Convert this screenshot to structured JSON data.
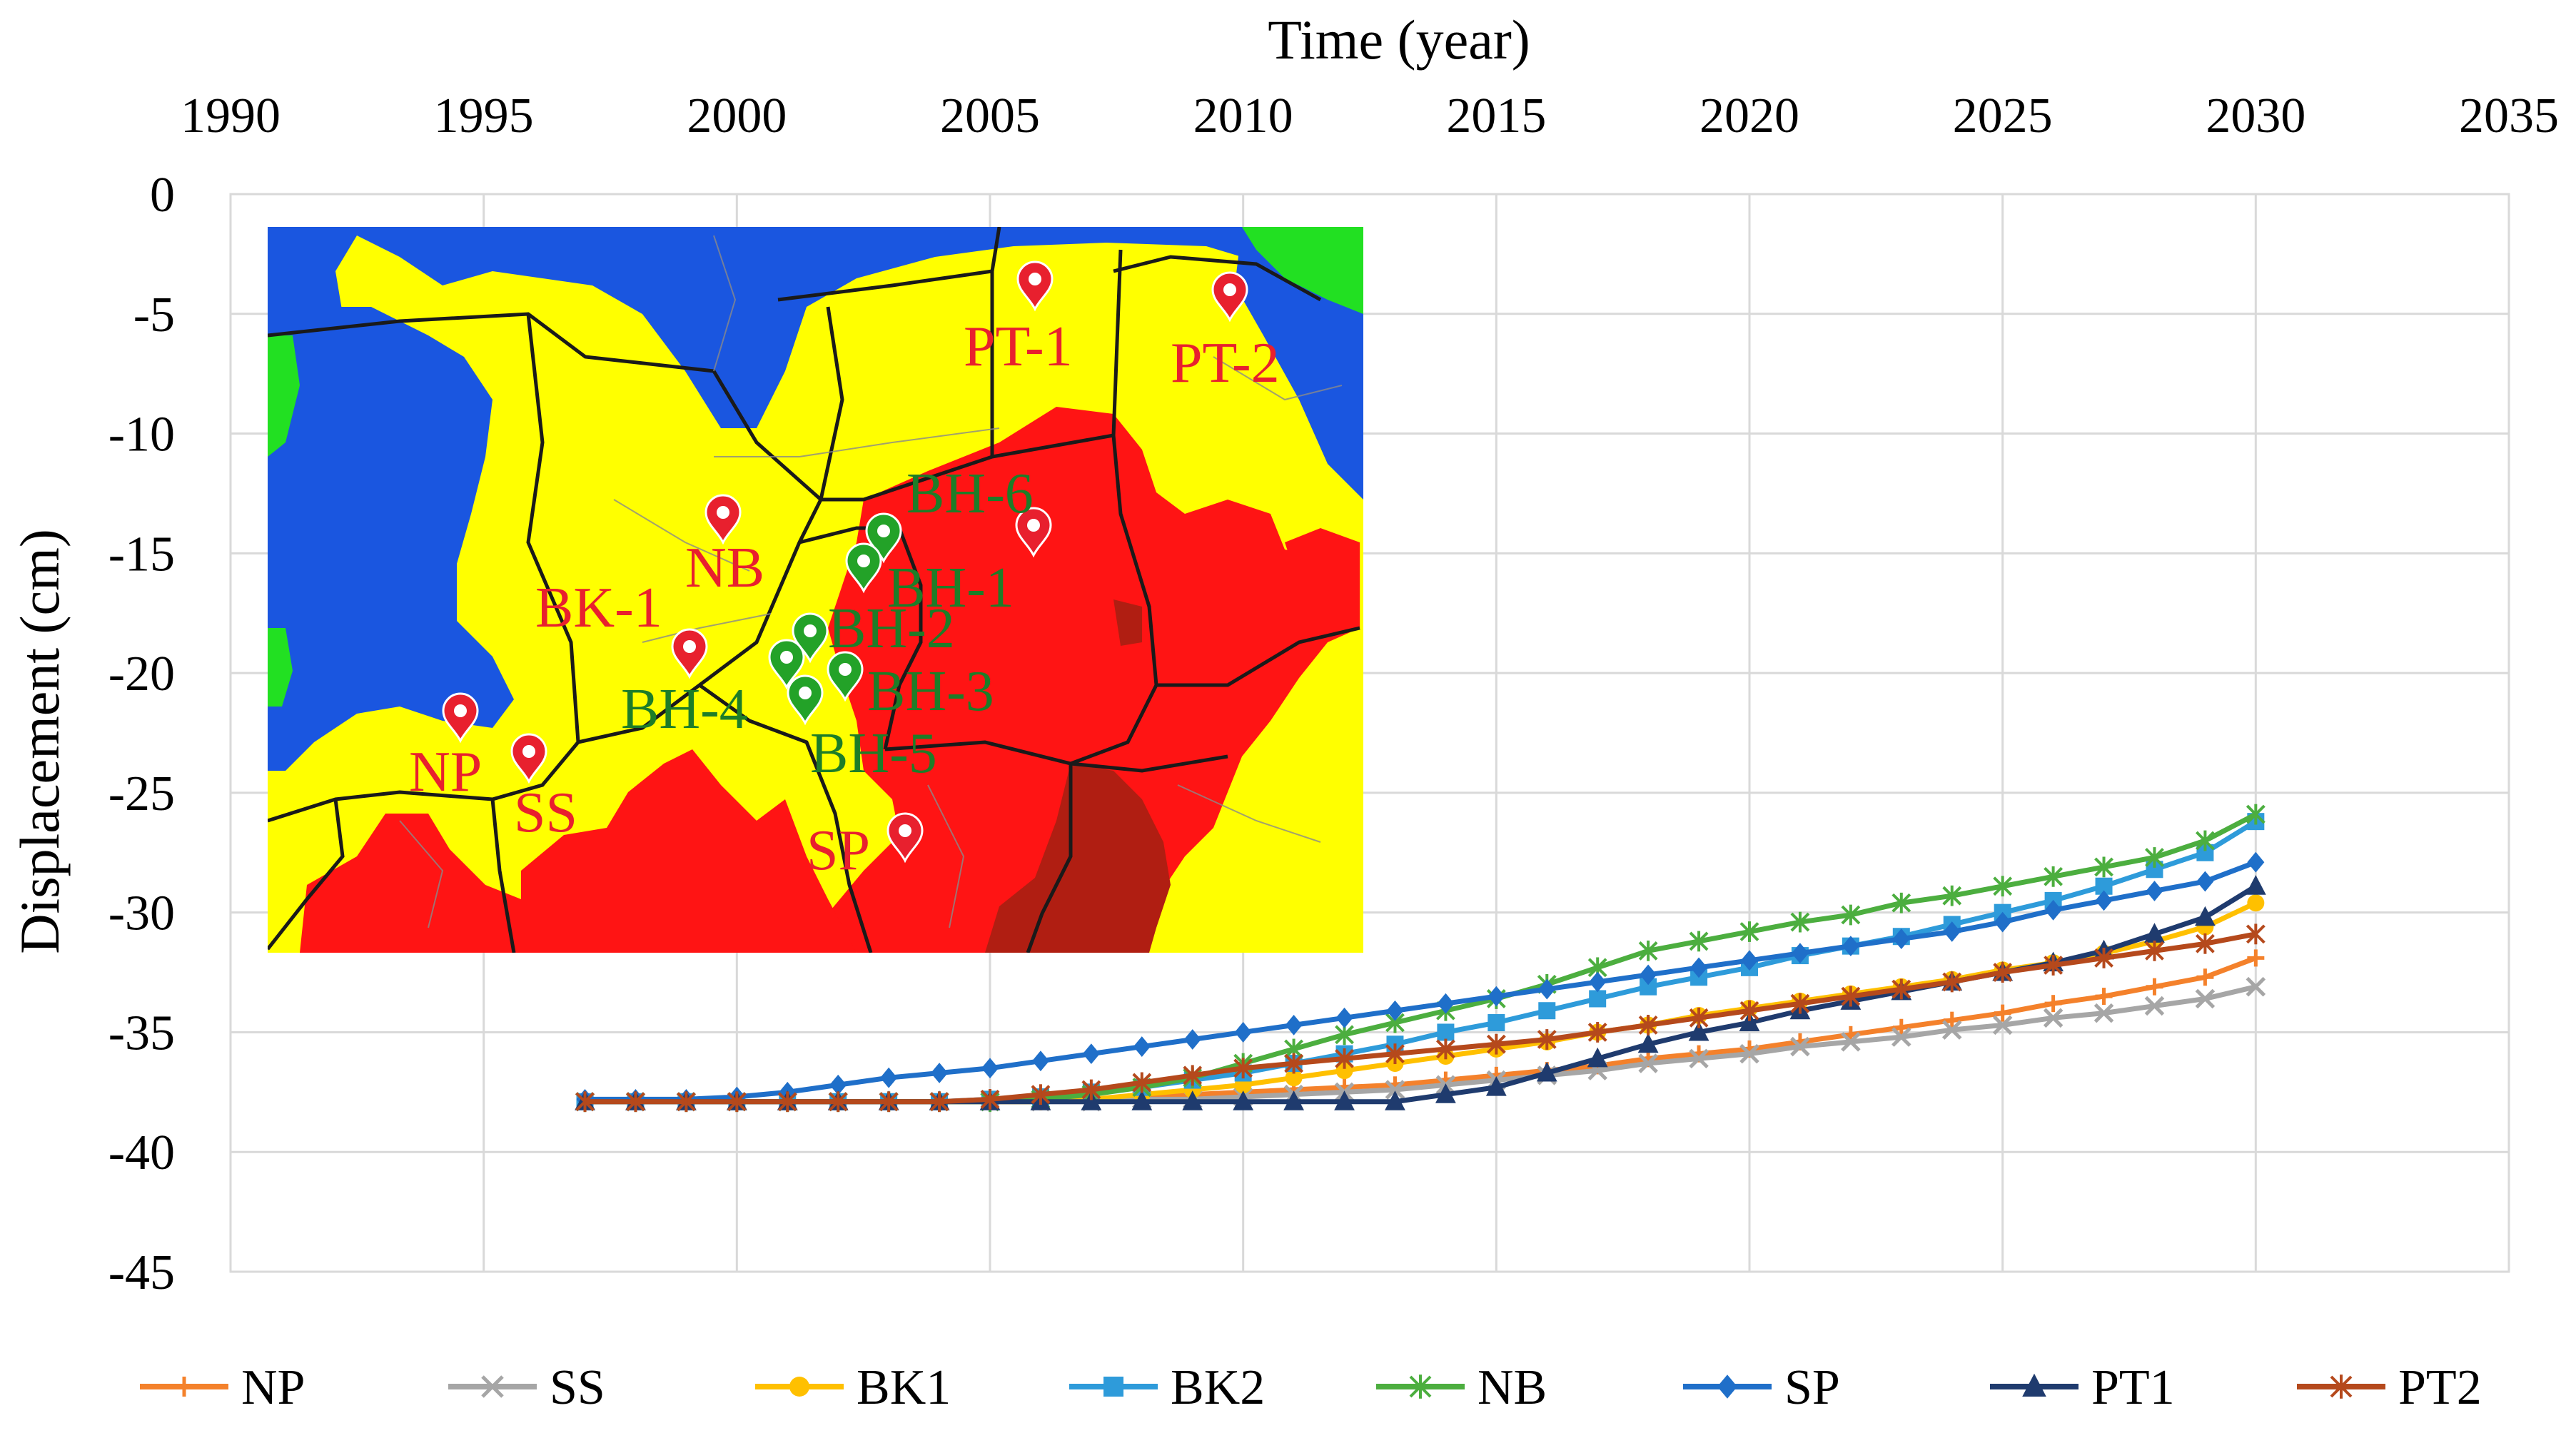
{
  "chart_data": {
    "type": "line",
    "title": "",
    "xlabel": "Time (year)",
    "ylabel": "Displacement (cm)",
    "xlim": [
      1990,
      2035
    ],
    "ylim": [
      -45,
      0
    ],
    "xticks": [
      1990,
      1995,
      2000,
      2005,
      2010,
      2015,
      2020,
      2025,
      2030,
      2035
    ],
    "yticks": [
      0,
      -5,
      -10,
      -15,
      -20,
      -25,
      -30,
      -35,
      -40,
      -45
    ],
    "grid": true,
    "legend_position": "bottom",
    "series": [
      {
        "name": "NP",
        "color": "#F4812B",
        "marker": "plus",
        "x": [
          1997,
          1998,
          1999,
          2000,
          2001,
          2002,
          2003,
          2004,
          2005,
          2006,
          2007,
          2008,
          2009,
          2010,
          2011,
          2012,
          2013,
          2014,
          2015,
          2016,
          2017,
          2018,
          2019,
          2020,
          2021,
          2022,
          2023,
          2024,
          2025,
          2026,
          2027,
          2028,
          2029,
          2030
        ],
        "y": [
          -37.9,
          -37.9,
          -37.9,
          -37.9,
          -37.9,
          -37.9,
          -37.9,
          -37.9,
          -37.9,
          -37.9,
          -37.8,
          -37.7,
          -37.6,
          -37.5,
          -37.4,
          -37.3,
          -37.2,
          -37.0,
          -36.8,
          -36.6,
          -36.4,
          -36.1,
          -35.9,
          -35.7,
          -35.4,
          -35.1,
          -34.8,
          -34.5,
          -34.2,
          -33.8,
          -33.5,
          -33.1,
          -32.7,
          -31.9
        ]
      },
      {
        "name": "SS",
        "color": "#A6A6A6",
        "marker": "x",
        "x": [
          1997,
          1998,
          1999,
          2000,
          2001,
          2002,
          2003,
          2004,
          2005,
          2006,
          2007,
          2008,
          2009,
          2010,
          2011,
          2012,
          2013,
          2014,
          2015,
          2016,
          2017,
          2018,
          2019,
          2020,
          2021,
          2022,
          2023,
          2024,
          2025,
          2026,
          2027,
          2028,
          2029,
          2030
        ],
        "y": [
          -37.9,
          -37.9,
          -37.9,
          -37.9,
          -37.9,
          -37.9,
          -37.9,
          -37.9,
          -37.9,
          -37.9,
          -37.9,
          -37.8,
          -37.8,
          -37.7,
          -37.6,
          -37.5,
          -37.4,
          -37.2,
          -37.0,
          -36.8,
          -36.6,
          -36.3,
          -36.1,
          -35.9,
          -35.6,
          -35.4,
          -35.2,
          -34.9,
          -34.7,
          -34.4,
          -34.2,
          -33.9,
          -33.6,
          -33.1
        ]
      },
      {
        "name": "BK1",
        "color": "#FFC000",
        "marker": "circle",
        "x": [
          1997,
          1998,
          1999,
          2000,
          2001,
          2002,
          2003,
          2004,
          2005,
          2006,
          2007,
          2008,
          2009,
          2010,
          2011,
          2012,
          2013,
          2014,
          2015,
          2016,
          2017,
          2018,
          2019,
          2020,
          2021,
          2022,
          2023,
          2024,
          2025,
          2026,
          2027,
          2028,
          2029,
          2030
        ],
        "y": [
          -37.9,
          -37.9,
          -37.9,
          -37.9,
          -37.9,
          -37.9,
          -37.9,
          -37.9,
          -37.9,
          -37.9,
          -37.8,
          -37.6,
          -37.4,
          -37.2,
          -36.9,
          -36.6,
          -36.3,
          -36.0,
          -35.7,
          -35.4,
          -35.0,
          -34.7,
          -34.3,
          -34.0,
          -33.7,
          -33.4,
          -33.1,
          -32.8,
          -32.4,
          -32.1,
          -31.7,
          -31.2,
          -30.6,
          -29.6
        ]
      },
      {
        "name": "BK2",
        "color": "#2E9BDA",
        "marker": "square",
        "x": [
          1997,
          1998,
          1999,
          2000,
          2001,
          2002,
          2003,
          2004,
          2005,
          2006,
          2007,
          2008,
          2009,
          2010,
          2011,
          2012,
          2013,
          2014,
          2015,
          2016,
          2017,
          2018,
          2019,
          2020,
          2021,
          2022,
          2023,
          2024,
          2025,
          2026,
          2027,
          2028,
          2029,
          2030
        ],
        "y": [
          -37.9,
          -37.9,
          -37.9,
          -37.9,
          -37.9,
          -37.9,
          -37.9,
          -37.9,
          -37.8,
          -37.7,
          -37.5,
          -37.3,
          -37.0,
          -36.7,
          -36.3,
          -35.9,
          -35.5,
          -35.0,
          -34.6,
          -34.1,
          -33.6,
          -33.1,
          -32.7,
          -32.3,
          -31.8,
          -31.4,
          -31.0,
          -30.5,
          -30.0,
          -29.5,
          -28.9,
          -28.2,
          -27.5,
          -26.2
        ]
      },
      {
        "name": "NB",
        "color": "#4CAE3F",
        "marker": "star",
        "x": [
          1997,
          1998,
          1999,
          2000,
          2001,
          2002,
          2003,
          2004,
          2005,
          2006,
          2007,
          2008,
          2009,
          2010,
          2011,
          2012,
          2013,
          2014,
          2015,
          2016,
          2017,
          2018,
          2019,
          2020,
          2021,
          2022,
          2023,
          2024,
          2025,
          2026,
          2027,
          2028,
          2029,
          2030
        ],
        "y": [
          -37.9,
          -37.9,
          -37.9,
          -37.9,
          -37.9,
          -37.9,
          -37.9,
          -37.9,
          -37.9,
          -37.8,
          -37.6,
          -37.3,
          -36.9,
          -36.3,
          -35.7,
          -35.1,
          -34.6,
          -34.1,
          -33.6,
          -33.0,
          -32.3,
          -31.6,
          -31.2,
          -30.8,
          -30.4,
          -30.1,
          -29.6,
          -29.3,
          -28.9,
          -28.5,
          -28.1,
          -27.7,
          -27.0,
          -25.9
        ]
      },
      {
        "name": "SP",
        "color": "#1F6FC9",
        "marker": "diamond",
        "x": [
          1997,
          1998,
          1999,
          2000,
          2001,
          2002,
          2003,
          2004,
          2005,
          2006,
          2007,
          2008,
          2009,
          2010,
          2011,
          2012,
          2013,
          2014,
          2015,
          2016,
          2017,
          2018,
          2019,
          2020,
          2021,
          2022,
          2023,
          2024,
          2025,
          2026,
          2027,
          2028,
          2029,
          2030
        ],
        "y": [
          -37.8,
          -37.8,
          -37.8,
          -37.7,
          -37.5,
          -37.2,
          -36.9,
          -36.7,
          -36.5,
          -36.2,
          -35.9,
          -35.6,
          -35.3,
          -35.0,
          -34.7,
          -34.4,
          -34.1,
          -33.8,
          -33.5,
          -33.2,
          -32.9,
          -32.6,
          -32.3,
          -32.0,
          -31.7,
          -31.4,
          -31.1,
          -30.8,
          -30.4,
          -29.9,
          -29.5,
          -29.1,
          -28.7,
          -27.9
        ]
      },
      {
        "name": "PT1",
        "color": "#1F3B6E",
        "marker": "triangle",
        "x": [
          1997,
          1998,
          1999,
          2000,
          2001,
          2002,
          2003,
          2004,
          2005,
          2006,
          2007,
          2008,
          2009,
          2010,
          2011,
          2012,
          2013,
          2014,
          2015,
          2016,
          2017,
          2018,
          2019,
          2020,
          2021,
          2022,
          2023,
          2024,
          2025,
          2026,
          2027,
          2028,
          2029,
          2030
        ],
        "y": [
          -37.9,
          -37.9,
          -37.9,
          -37.9,
          -37.9,
          -37.9,
          -37.9,
          -37.9,
          -37.9,
          -37.9,
          -37.9,
          -37.9,
          -37.9,
          -37.9,
          -37.9,
          -37.9,
          -37.9,
          -37.6,
          -37.3,
          -36.7,
          -36.1,
          -35.5,
          -35.0,
          -34.6,
          -34.1,
          -33.7,
          -33.3,
          -32.9,
          -32.5,
          -32.1,
          -31.6,
          -30.9,
          -30.2,
          -28.9
        ]
      },
      {
        "name": "PT2",
        "color": "#B5491C",
        "marker": "asterisk",
        "x": [
          1997,
          1998,
          1999,
          2000,
          2001,
          2002,
          2003,
          2004,
          2005,
          2006,
          2007,
          2008,
          2009,
          2010,
          2011,
          2012,
          2013,
          2014,
          2015,
          2016,
          2017,
          2018,
          2019,
          2020,
          2021,
          2022,
          2023,
          2024,
          2025,
          2026,
          2027,
          2028,
          2029,
          2030
        ],
        "y": [
          -37.9,
          -37.9,
          -37.9,
          -37.9,
          -37.9,
          -37.9,
          -37.9,
          -37.9,
          -37.8,
          -37.6,
          -37.4,
          -37.1,
          -36.8,
          -36.5,
          -36.3,
          -36.1,
          -35.9,
          -35.7,
          -35.5,
          -35.3,
          -35.0,
          -34.7,
          -34.4,
          -34.1,
          -33.8,
          -33.5,
          -33.2,
          -32.9,
          -32.5,
          -32.2,
          -31.9,
          -31.6,
          -31.3,
          -30.9
        ]
      }
    ],
    "inset_map": {
      "description_free": true,
      "colors": {
        "blue": "#1A56E0",
        "yellow": "#FFFF00",
        "red": "#FF1414",
        "dark_red": "#B01E12",
        "green": "#22E022",
        "pin": "#E8202E",
        "pin_green": "#23A228",
        "label_red": "#E8202E",
        "label_green": "#1D7D28"
      },
      "labels": [
        {
          "text": "PT-1",
          "kind": "red"
        },
        {
          "text": "PT-2",
          "kind": "red"
        },
        {
          "text": "BH-6",
          "kind": "green"
        },
        {
          "text": "NB",
          "kind": "red"
        },
        {
          "text": "BH-1",
          "kind": "green"
        },
        {
          "text": "BK-1",
          "kind": "red"
        },
        {
          "text": "BH-2",
          "kind": "green"
        },
        {
          "text": "BH-4",
          "kind": "green"
        },
        {
          "text": "BH-3",
          "kind": "green"
        },
        {
          "text": "BH-5",
          "kind": "green"
        },
        {
          "text": "NP",
          "kind": "red"
        },
        {
          "text": "SS",
          "kind": "red"
        },
        {
          "text": "SP",
          "kind": "red"
        }
      ]
    }
  }
}
